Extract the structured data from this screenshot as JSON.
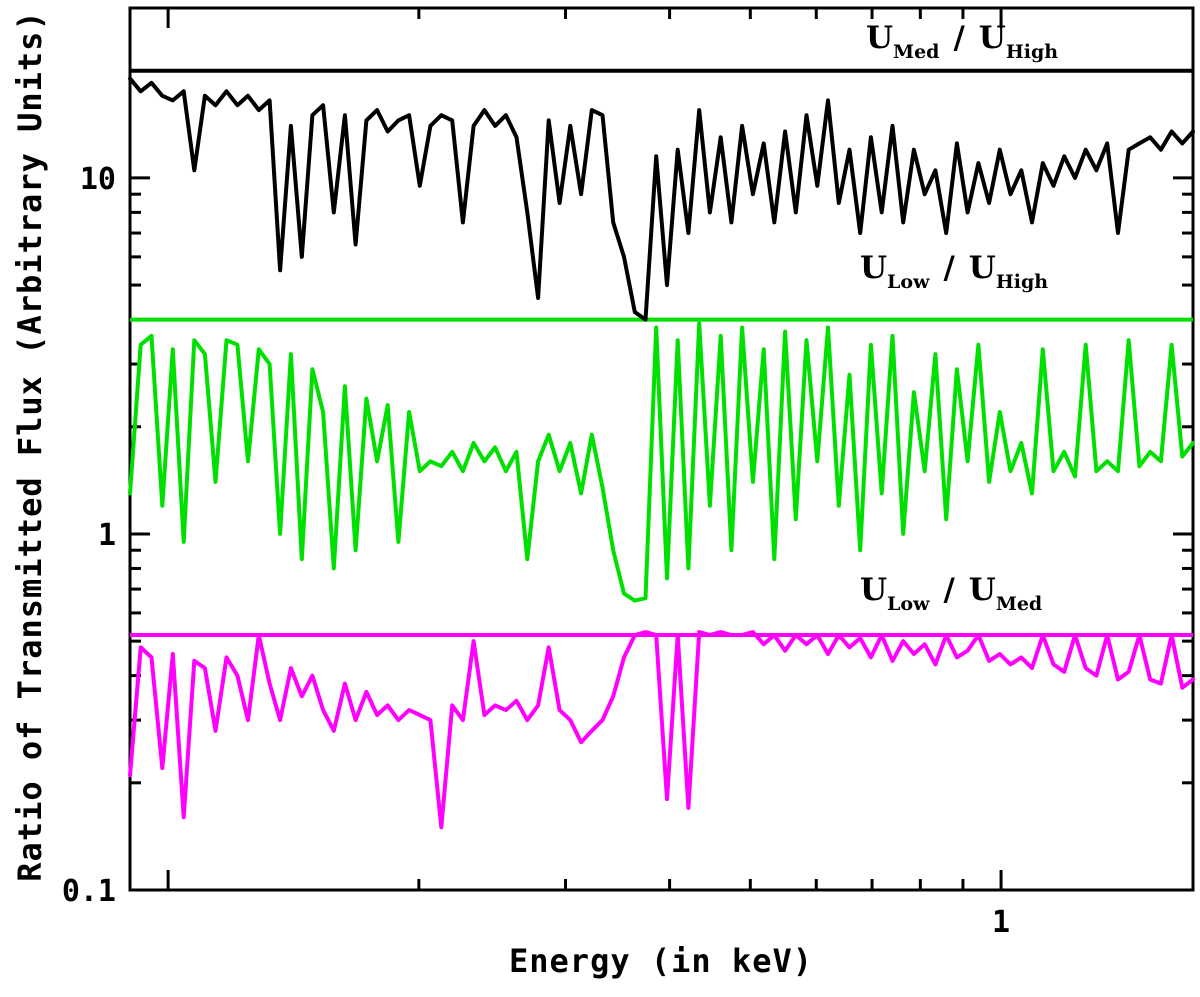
{
  "chart_data": {
    "type": "line",
    "x_scale": "log",
    "y_scale": "log",
    "xlim": [
      0.09,
      1.7
    ],
    "ylim": [
      0.1,
      30
    ],
    "grid": false,
    "xlabel": "Energy (in keV)",
    "ylabel": "Ratio of Transmitted Flux (Arbitrary Units)",
    "x_tick_labels": [
      {
        "v": 1,
        "t": "1"
      }
    ],
    "y_tick_labels": [
      {
        "v": 0.1,
        "t": "0.1"
      },
      {
        "v": 1,
        "t": "1"
      },
      {
        "v": 10,
        "t": "10"
      }
    ],
    "x": [
      0.09,
      0.0927,
      0.0955,
      0.0984,
      0.1013,
      0.1044,
      0.1075,
      0.1107,
      0.114,
      0.1175,
      0.1211,
      0.1247,
      0.1285,
      0.1324,
      0.1363,
      0.1404,
      0.1447,
      0.149,
      0.1535,
      0.1581,
      0.163,
      0.1679,
      0.173,
      0.1782,
      0.1835,
      0.189,
      0.1947,
      0.2005,
      0.2065,
      0.2128,
      0.2193,
      0.2259,
      0.2327,
      0.2397,
      0.2469,
      0.2544,
      0.262,
      0.2699,
      0.2781,
      0.2864,
      0.2951,
      0.304,
      0.3132,
      0.3226,
      0.3323,
      0.3423,
      0.3526,
      0.3633,
      0.3742,
      0.3855,
      0.3971,
      0.4091,
      0.4214,
      0.4341,
      0.4472,
      0.4607,
      0.4745,
      0.4888,
      0.5036,
      0.5188,
      0.5343,
      0.5504,
      0.567,
      0.5841,
      0.6017,
      0.6198,
      0.6385,
      0.6577,
      0.6775,
      0.6979,
      0.719,
      0.7407,
      0.763,
      0.786,
      0.8097,
      0.8341,
      0.8592,
      0.8851,
      0.9117,
      0.9392,
      0.9675,
      0.9966,
      1.0266,
      1.0575,
      1.0894,
      1.1222,
      1.156,
      1.1908,
      1.2267,
      1.2636,
      1.3017,
      1.3411,
      1.3815,
      1.4231,
      1.4659,
      1.5101,
      1.5555,
      1.6024,
      1.6506,
      1.7
    ],
    "series": [
      {
        "id": "umed-uhigh",
        "name": "U_Med / U_High",
        "color": "#000000",
        "baseline": 20,
        "values": [
          19,
          17.5,
          18.5,
          17,
          16.5,
          17.5,
          10.5,
          17,
          16,
          17.5,
          16,
          17,
          15.5,
          16.5,
          5.5,
          14,
          6,
          15,
          16,
          8,
          15,
          6.5,
          14.5,
          15.5,
          13.5,
          14.5,
          15,
          9.5,
          14,
          15,
          14.5,
          7.5,
          14,
          15.5,
          14,
          15,
          13,
          8,
          4.6,
          14.5,
          8.5,
          14,
          9,
          15.5,
          15,
          7.5,
          6,
          4.2,
          4,
          11.5,
          5,
          12,
          7,
          15.5,
          8,
          13,
          7.5,
          14,
          9,
          12.5,
          7.5,
          13.5,
          8,
          15,
          9.5,
          16.5,
          8.5,
          12,
          7,
          13,
          8,
          14,
          7.5,
          12,
          9,
          10.5,
          7,
          12.5,
          8,
          11,
          8.5,
          12,
          9,
          10.5,
          7.5,
          11,
          9.5,
          11.5,
          10,
          12,
          10.5,
          12.5,
          7,
          12,
          12.5,
          13,
          12,
          13.5,
          12.5,
          13.5
        ]
      },
      {
        "id": "ulow-uhigh",
        "name": "U_Low / U_High",
        "color": "#00e000",
        "baseline": 4,
        "values": [
          1.3,
          3.4,
          3.6,
          1.2,
          3.3,
          0.95,
          3.5,
          3.2,
          1.4,
          3.5,
          3.4,
          1.6,
          3.3,
          3,
          1,
          3.2,
          0.85,
          2.9,
          2.2,
          0.8,
          2.6,
          0.9,
          2.4,
          1.6,
          2.3,
          0.95,
          2.2,
          1.5,
          1.6,
          1.55,
          1.7,
          1.5,
          1.8,
          1.6,
          1.75,
          1.5,
          1.7,
          0.85,
          1.6,
          1.9,
          1.5,
          1.8,
          1.3,
          1.9,
          1.35,
          0.9,
          0.68,
          0.65,
          0.66,
          3.8,
          0.75,
          3.5,
          0.8,
          3.9,
          1.2,
          3.6,
          0.9,
          3.8,
          1.4,
          3.3,
          0.85,
          3.7,
          1.1,
          3.5,
          1.6,
          3.8,
          1.2,
          2.8,
          0.9,
          3.4,
          1.3,
          3.6,
          1,
          2.5,
          1.5,
          3.2,
          1.1,
          2.9,
          1.6,
          3.4,
          1.4,
          2.2,
          1.5,
          1.8,
          1.3,
          3.3,
          1.5,
          1.7,
          1.45,
          3.4,
          1.5,
          1.6,
          1.5,
          3.5,
          1.55,
          1.7,
          1.6,
          3.4,
          1.65,
          1.8
        ]
      },
      {
        "id": "ulow-umed",
        "name": "U_Low / U_Med",
        "color": "#ff00ff",
        "baseline": 0.52,
        "values": [
          0.21,
          0.48,
          0.45,
          0.22,
          0.46,
          0.16,
          0.44,
          0.42,
          0.28,
          0.45,
          0.4,
          0.3,
          0.52,
          0.38,
          0.3,
          0.42,
          0.35,
          0.4,
          0.32,
          0.28,
          0.38,
          0.3,
          0.36,
          0.31,
          0.33,
          0.3,
          0.32,
          0.31,
          0.3,
          0.15,
          0.33,
          0.3,
          0.5,
          0.31,
          0.33,
          0.32,
          0.34,
          0.3,
          0.33,
          0.48,
          0.32,
          0.3,
          0.26,
          0.28,
          0.3,
          0.35,
          0.45,
          0.52,
          0.53,
          0.52,
          0.18,
          0.52,
          0.17,
          0.53,
          0.52,
          0.53,
          0.52,
          0.52,
          0.53,
          0.49,
          0.52,
          0.47,
          0.52,
          0.49,
          0.52,
          0.46,
          0.52,
          0.48,
          0.51,
          0.45,
          0.52,
          0.44,
          0.5,
          0.46,
          0.49,
          0.43,
          0.52,
          0.45,
          0.47,
          0.52,
          0.44,
          0.46,
          0.43,
          0.45,
          0.42,
          0.52,
          0.43,
          0.41,
          0.52,
          0.42,
          0.4,
          0.52,
          0.39,
          0.41,
          0.52,
          0.39,
          0.38,
          0.52,
          0.37,
          0.39
        ]
      }
    ],
    "legend": [
      {
        "u1": "U",
        "sub1": "Med",
        "sep": "/",
        "u2": "U",
        "sub2": "High"
      },
      {
        "u1": "U",
        "sub1": "Low",
        "sep": "/",
        "u2": "U",
        "sub2": "High"
      },
      {
        "u1": "U",
        "sub1": "Low",
        "sep": "/",
        "u2": "U",
        "sub2": "Med"
      }
    ]
  }
}
